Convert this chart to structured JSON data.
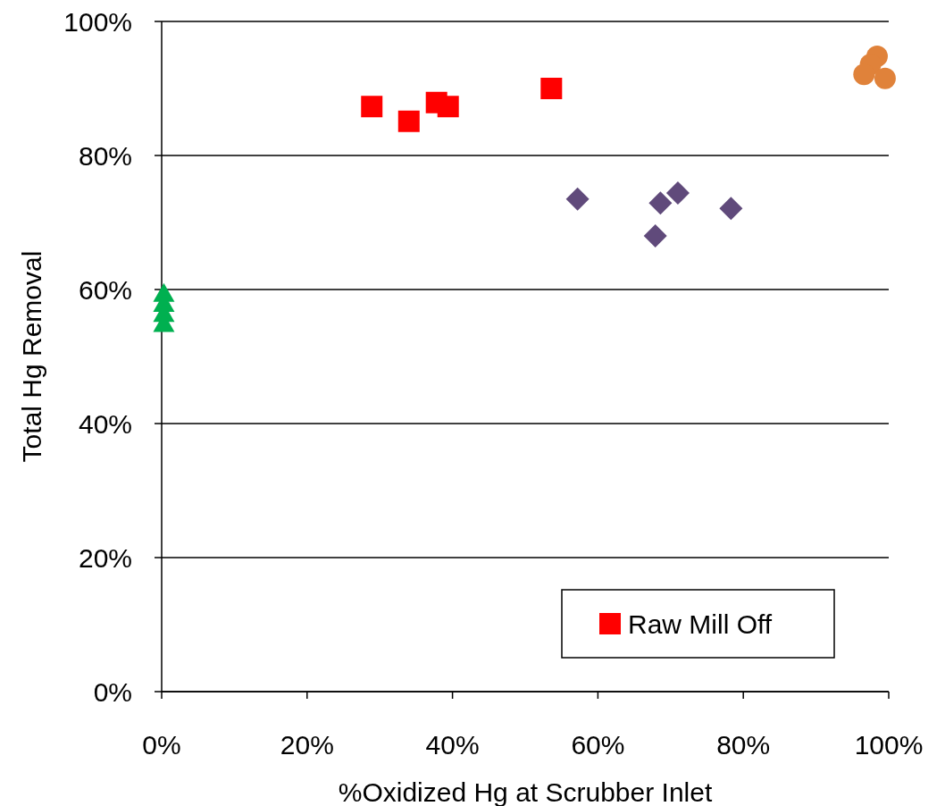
{
  "chart_data": {
    "type": "scatter",
    "xlabel": "%Oxidized Hg at Scrubber Inlet",
    "ylabel": "Total Hg Removal",
    "xlim": [
      0,
      100
    ],
    "ylim": [
      0,
      100
    ],
    "xticks": [
      {
        "value": 0,
        "label": "0%"
      },
      {
        "value": 20,
        "label": "20%"
      },
      {
        "value": 40,
        "label": "40%"
      },
      {
        "value": 60,
        "label": "60%"
      },
      {
        "value": 80,
        "label": "80%"
      },
      {
        "value": 100,
        "label": "100%"
      }
    ],
    "yticks": [
      {
        "value": 0,
        "label": "0%"
      },
      {
        "value": 20,
        "label": "20%"
      },
      {
        "value": 40,
        "label": "40%"
      },
      {
        "value": 60,
        "label": "60%"
      },
      {
        "value": 80,
        "label": "80%"
      },
      {
        "value": 100,
        "label": "100%"
      }
    ],
    "grid": "y",
    "legend": "bottom right",
    "series": [
      {
        "name": "Raw Mill Off",
        "color": "#ff0000",
        "marker": "square",
        "x": [
          28.9,
          34.0,
          37.8,
          39.4,
          53.6
        ],
        "values": [
          87.3,
          85.1,
          87.9,
          87.3,
          90.0
        ]
      },
      {
        "color": "#604a7b",
        "marker": "diamond",
        "x": [
          57.2,
          68.6,
          67.9,
          71.0,
          78.3
        ],
        "values": [
          73.5,
          72.9,
          68.0,
          74.4,
          72.1
        ]
      },
      {
        "color": "#e0823a",
        "marker": "circle",
        "x": [
          98.4,
          97.5,
          96.6,
          99.5
        ],
        "values": [
          94.8,
          93.6,
          92.1,
          91.5
        ]
      },
      {
        "color": "#00b050",
        "marker": "triangle",
        "x": [
          0.3,
          0.3,
          0.3,
          0.3
        ],
        "values": [
          59.5,
          58.0,
          56.5,
          55.0
        ]
      }
    ]
  }
}
